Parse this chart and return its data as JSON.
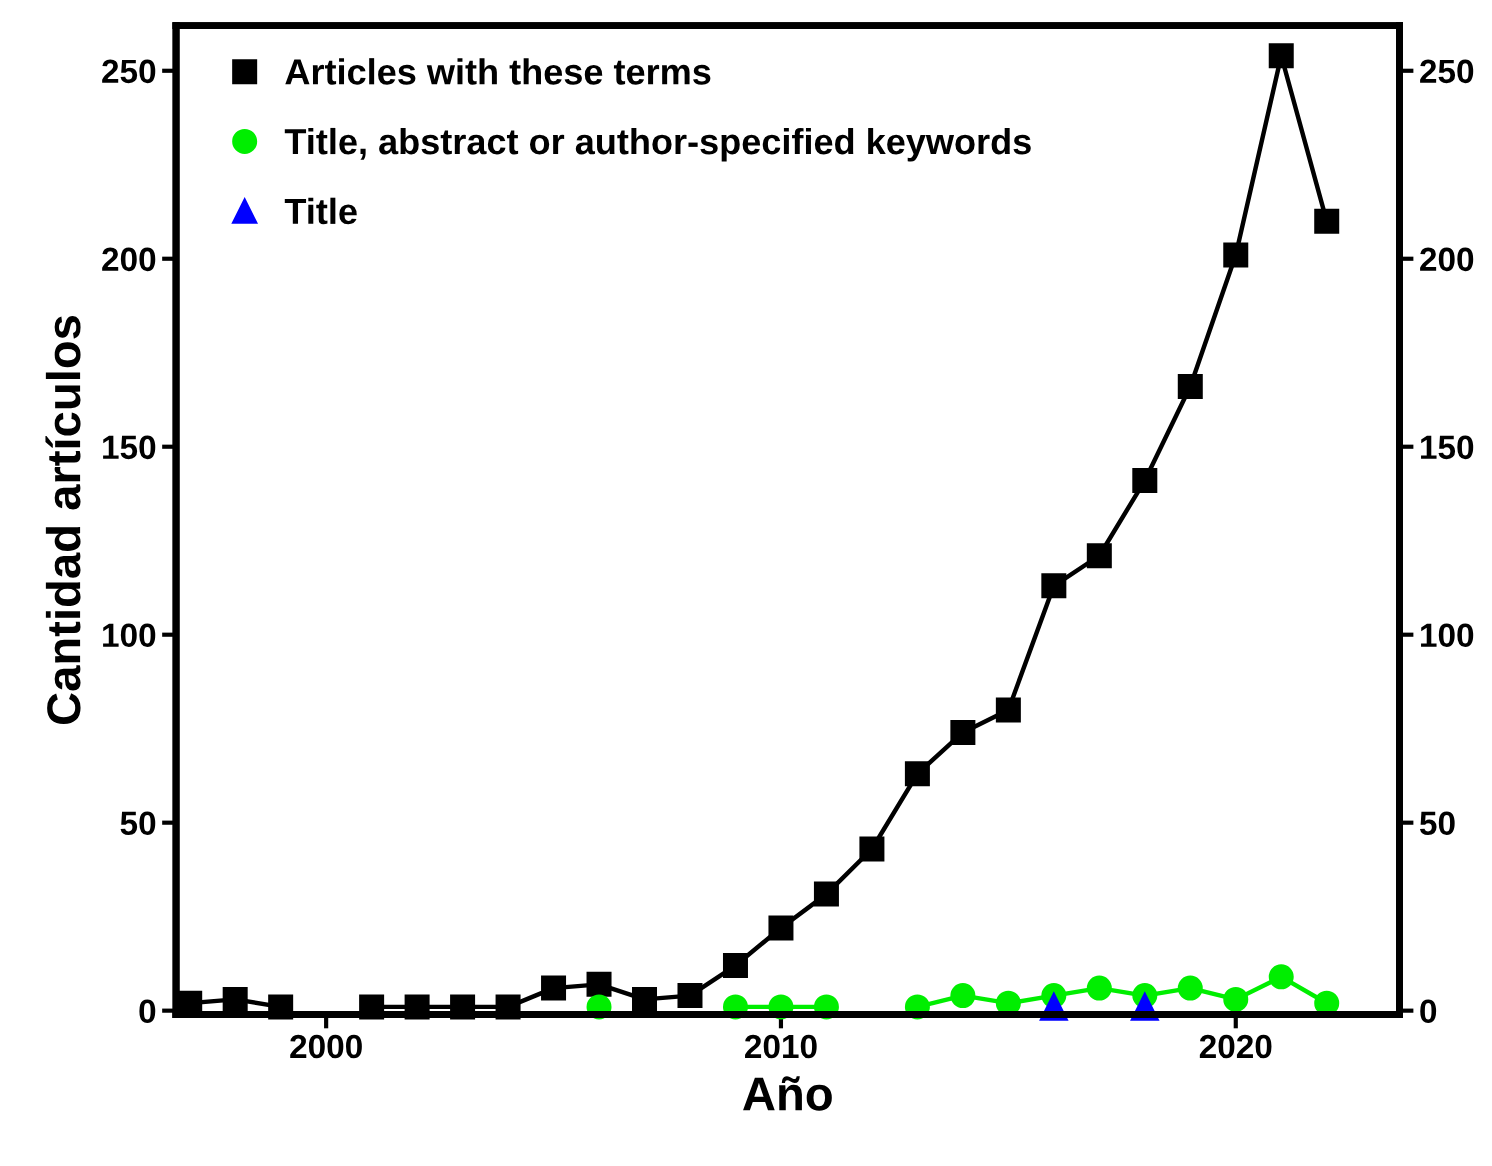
{
  "chart_data": {
    "type": "line",
    "xlabel": "Año",
    "ylabel": "Cantidad artículos",
    "x": [
      1997,
      1998,
      1999,
      2000,
      2001,
      2002,
      2003,
      2004,
      2005,
      2006,
      2007,
      2008,
      2009,
      2010,
      2011,
      2012,
      2013,
      2014,
      2015,
      2016,
      2017,
      2018,
      2019,
      2020,
      2021,
      2022
    ],
    "series": [
      {
        "name": "Articles with these terms",
        "color": "#000000",
        "marker": "square",
        "values": [
          2,
          3,
          1,
          null,
          1,
          1,
          1,
          1,
          6,
          7,
          3,
          4,
          12,
          22,
          31,
          43,
          63,
          74,
          80,
          113,
          121,
          141,
          166,
          201,
          254,
          210
        ]
      },
      {
        "name": "Title, abstract or author-specified keywords",
        "color": "#00ee00",
        "marker": "circle",
        "values": [
          null,
          null,
          null,
          null,
          null,
          null,
          null,
          null,
          null,
          1,
          null,
          null,
          1,
          1,
          1,
          null,
          1,
          4,
          2,
          4,
          6,
          4,
          6,
          3,
          9,
          2
        ]
      },
      {
        "name": "Title",
        "type": "scatter",
        "color": "#0000ff",
        "marker": "triangle",
        "values": [
          null,
          null,
          null,
          null,
          null,
          null,
          null,
          null,
          null,
          null,
          null,
          null,
          null,
          null,
          null,
          null,
          null,
          null,
          null,
          1,
          null,
          1,
          null,
          null,
          null,
          null
        ]
      }
    ],
    "xlim": [
      1996.7,
      2023.6
    ],
    "xticks": [
      2000,
      2010,
      2020
    ],
    "ylim": [
      -1,
      262
    ],
    "yticks": [
      0,
      50,
      100,
      150,
      200,
      250
    ],
    "y2lim": [
      -1,
      262
    ],
    "y2ticks": [
      0,
      50,
      100,
      150,
      200,
      250
    ],
    "line_style": "solid",
    "grid": false,
    "legend": "top left"
  }
}
